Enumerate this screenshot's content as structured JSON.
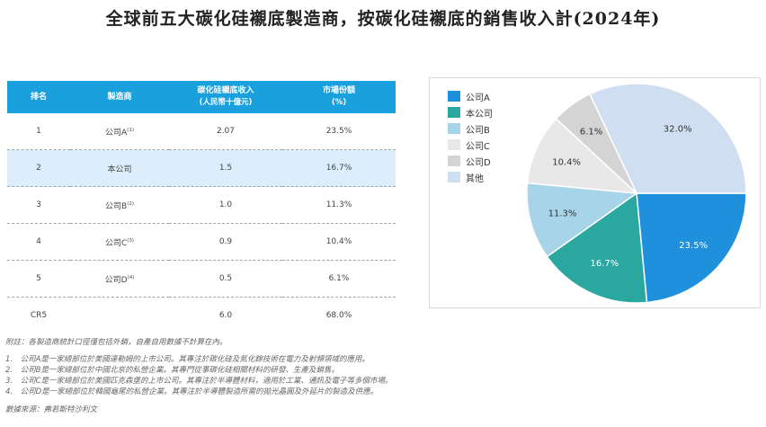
{
  "title": "全球前五大碳化硅襯底製造商，按碳化硅襯底的銷售收入計(2024年)",
  "table": {
    "headers": {
      "rank": "排名",
      "maker": "製造商",
      "revenue": "碳化硅襯底收入",
      "revenue_unit": "(人民幣十億元)",
      "share": "市場份額",
      "share_unit": "(%)"
    },
    "rows": [
      {
        "rank": "1",
        "maker": "公司A",
        "note": "(1)",
        "revenue": "2.07",
        "share": "23.5%"
      },
      {
        "rank": "2",
        "maker": "本公司",
        "note": "",
        "revenue": "1.5",
        "share": "16.7%"
      },
      {
        "rank": "3",
        "maker": "公司B",
        "note": "(2)",
        "revenue": "1.0",
        "share": "11.3%"
      },
      {
        "rank": "4",
        "maker": "公司C",
        "note": "(3)",
        "revenue": "0.9",
        "share": "10.4%"
      },
      {
        "rank": "5",
        "maker": "公司D",
        "note": "(4)",
        "revenue": "0.5",
        "share": "6.1%"
      },
      {
        "rank": "CR5",
        "maker": "",
        "note": "",
        "revenue": "6.0",
        "share": "68.0%"
      }
    ]
  },
  "notes": {
    "remark": "附註：各製造商統計口徑僅包括外銷，自產自用數據不計算在內。",
    "items": [
      "1.　公司A是一家總部位於美國達勒姆的上市公司。其專注於碳化硅及氮化鎵技術在電力及射頻領域的應用。",
      "2.　公司B是一家總部位於中國北京的私營企業。其專門從事碳化硅相關材料的研發、生產及銷售。",
      "3.　公司C是一家總部位於美國匹克森堡的上市公司。其專注於半導體材料，適用於工業、通訊及電子等多個市場。",
      "4.　公司D是一家總部位於韓國龜尾的私營企業。其專注於半導體製造所需的拋光晶圓及外延片的製造及供應。"
    ],
    "source": "數據來源：弗若斯特沙利文"
  },
  "chart_data": {
    "type": "pie",
    "title": "",
    "labels": [
      "公司A",
      "本公司",
      "公司B",
      "公司C",
      "公司D",
      "其他"
    ],
    "values": [
      23.5,
      16.7,
      11.3,
      10.4,
      6.1,
      32.0
    ],
    "value_labels": [
      "23.5%",
      "16.7%",
      "11.3%",
      "10.4%",
      "6.1%",
      "32.0%"
    ],
    "colors": [
      "#1e90dc",
      "#2aa8a0",
      "#a8d4ea",
      "#e8e8e8",
      "#d4d4d4",
      "#cfdef0"
    ],
    "label_colors": [
      "#ffffff",
      "#ffffff",
      "#333333",
      "#333333",
      "#333333",
      "#333333"
    ],
    "start_angle_deg": 0,
    "direction": "clockwise",
    "legend_position": "top-left"
  }
}
